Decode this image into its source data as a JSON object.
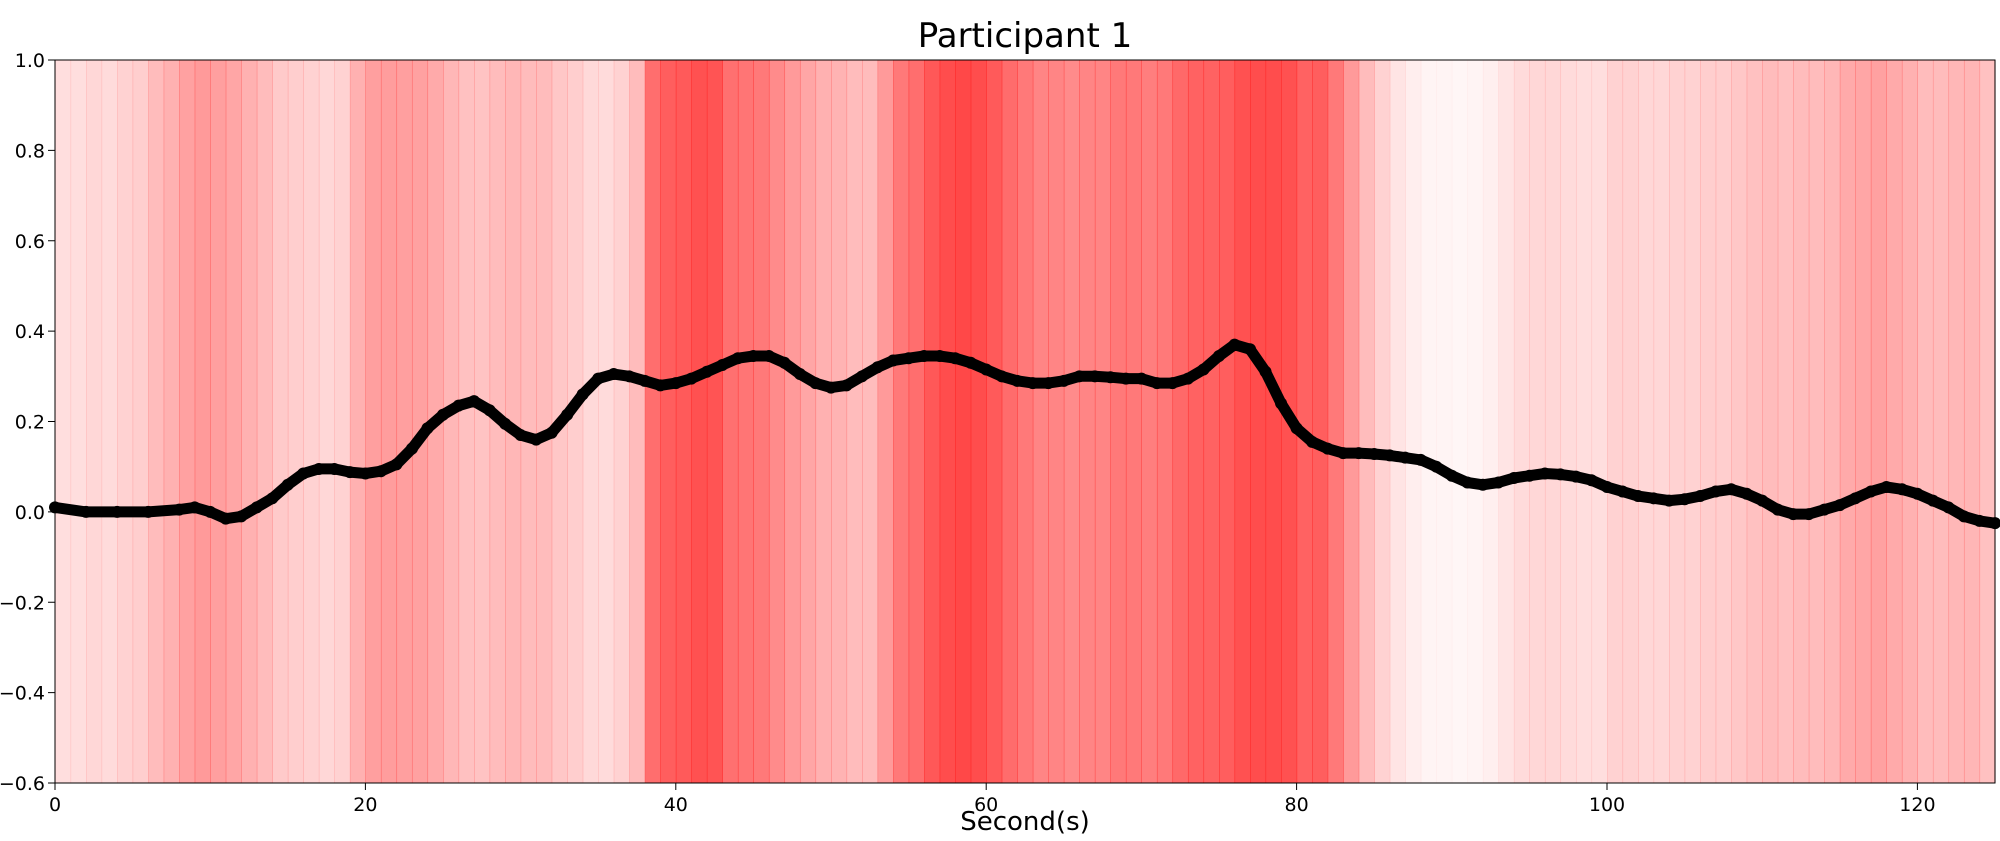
{
  "chart_data": {
    "type": "line",
    "title": "Participant 1",
    "xlabel": "Second(s)",
    "ylabel": "",
    "xlim": [
      0,
      125
    ],
    "ylim": [
      -0.6,
      1.0
    ],
    "xticks": [
      0,
      20,
      40,
      60,
      80,
      100,
      120
    ],
    "xtick_labels": [
      "0",
      "20",
      "40",
      "60",
      "80",
      "100",
      "120"
    ],
    "yticks": [
      1.0,
      0.8,
      0.6,
      0.4,
      0.2,
      0.0,
      -0.2,
      -0.4,
      -0.6
    ],
    "ytick_labels": [
      "1.0",
      "0.8",
      "0.6",
      "0.4",
      "0.2",
      "0.0",
      "−0.2",
      "−0.4",
      "−0.6"
    ],
    "grid": false,
    "line_color": "#000000",
    "band_color": "#ff2020",
    "series": [
      {
        "x": [
          0,
          2,
          4,
          6,
          8,
          9,
          10,
          11,
          12,
          13,
          14,
          15,
          16,
          17,
          18,
          19,
          20,
          21,
          22,
          23,
          24,
          25,
          26,
          27,
          28,
          29,
          30,
          31,
          32,
          33,
          34,
          35,
          36,
          37,
          38,
          39,
          40,
          41,
          42,
          43,
          44,
          45,
          46,
          47,
          48,
          49,
          50,
          51,
          52,
          53,
          54,
          55,
          56,
          57,
          58,
          59,
          60,
          61,
          62,
          63,
          64,
          65,
          66,
          67,
          68,
          69,
          70,
          71,
          72,
          73,
          74,
          75,
          76,
          77,
          78,
          79,
          80,
          81,
          82,
          83,
          84,
          85,
          86,
          87,
          88,
          89,
          90,
          91,
          92,
          93,
          94,
          95,
          96,
          97,
          98,
          99,
          100,
          101,
          102,
          103,
          104,
          105,
          106,
          107,
          108,
          109,
          110,
          111,
          112,
          113,
          114,
          115,
          116,
          117,
          118,
          119,
          120,
          121,
          122,
          123,
          124,
          125
        ],
        "y": [
          0.01,
          0.0,
          0.0,
          0.0,
          0.005,
          0.01,
          0.0,
          -0.015,
          -0.01,
          0.01,
          0.03,
          0.06,
          0.085,
          0.095,
          0.095,
          0.088,
          0.085,
          0.09,
          0.105,
          0.14,
          0.185,
          0.215,
          0.235,
          0.245,
          0.225,
          0.195,
          0.17,
          0.16,
          0.175,
          0.215,
          0.26,
          0.295,
          0.305,
          0.3,
          0.29,
          0.28,
          0.285,
          0.295,
          0.31,
          0.325,
          0.34,
          0.345,
          0.345,
          0.33,
          0.305,
          0.285,
          0.275,
          0.28,
          0.3,
          0.32,
          0.335,
          0.34,
          0.345,
          0.345,
          0.34,
          0.33,
          0.315,
          0.3,
          0.29,
          0.285,
          0.285,
          0.29,
          0.3,
          0.3,
          0.298,
          0.295,
          0.295,
          0.285,
          0.285,
          0.295,
          0.315,
          0.345,
          0.37,
          0.36,
          0.31,
          0.24,
          0.185,
          0.155,
          0.14,
          0.13,
          0.13,
          0.128,
          0.125,
          0.12,
          0.115,
          0.1,
          0.08,
          0.065,
          0.06,
          0.065,
          0.075,
          0.08,
          0.085,
          0.083,
          0.078,
          0.07,
          0.055,
          0.045,
          0.035,
          0.03,
          0.025,
          0.028,
          0.035,
          0.045,
          0.05,
          0.04,
          0.025,
          0.005,
          -0.005,
          -0.005,
          0.005,
          0.015,
          0.03,
          0.045,
          0.055,
          0.05,
          0.04,
          0.025,
          0.01,
          -0.01,
          -0.02,
          -0.025
        ]
      }
    ],
    "background_intensity": {
      "x_step": 1,
      "values": [
        0.15,
        0.15,
        0.18,
        0.16,
        0.2,
        0.22,
        0.3,
        0.35,
        0.42,
        0.45,
        0.43,
        0.4,
        0.35,
        0.3,
        0.24,
        0.22,
        0.2,
        0.18,
        0.2,
        0.35,
        0.43,
        0.44,
        0.43,
        0.42,
        0.38,
        0.32,
        0.28,
        0.27,
        0.3,
        0.32,
        0.3,
        0.3,
        0.25,
        0.22,
        0.17,
        0.16,
        0.2,
        0.3,
        0.65,
        0.72,
        0.74,
        0.78,
        0.77,
        0.64,
        0.62,
        0.6,
        0.52,
        0.45,
        0.4,
        0.35,
        0.34,
        0.3,
        0.3,
        0.45,
        0.6,
        0.65,
        0.75,
        0.8,
        0.82,
        0.8,
        0.74,
        0.66,
        0.6,
        0.55,
        0.55,
        0.52,
        0.55,
        0.55,
        0.6,
        0.6,
        0.58,
        0.6,
        0.67,
        0.7,
        0.7,
        0.72,
        0.78,
        0.8,
        0.8,
        0.78,
        0.7,
        0.72,
        0.6,
        0.45,
        0.3,
        0.2,
        0.12,
        0.08,
        0.05,
        0.05,
        0.04,
        0.05,
        0.07,
        0.12,
        0.16,
        0.18,
        0.18,
        0.16,
        0.15,
        0.15,
        0.2,
        0.2,
        0.18,
        0.18,
        0.2,
        0.2,
        0.22,
        0.22,
        0.25,
        0.28,
        0.3,
        0.28,
        0.3,
        0.3,
        0.32,
        0.38,
        0.4,
        0.42,
        0.38,
        0.35,
        0.3,
        0.3,
        0.32,
        0.33,
        0.28
      ]
    }
  }
}
